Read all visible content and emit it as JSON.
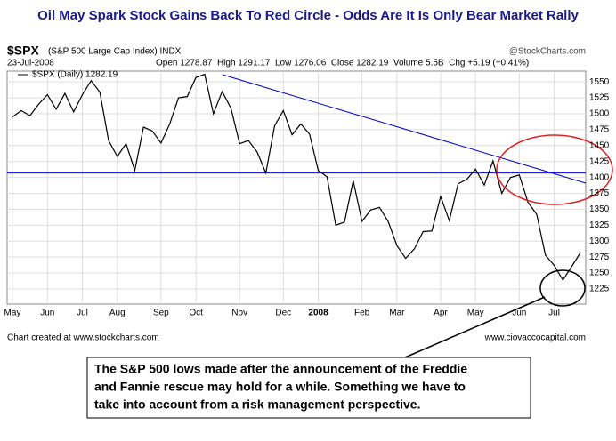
{
  "chart_data": {
    "type": "line",
    "title": "Oil May Spark Stock Gains Back To Red Circle - Odds Are It Is Only Bear Market Rally",
    "symbol": "$SPX",
    "symbol_description": "(S&P 500 Large Cap Index) INDX",
    "credit": "@StockCharts.com",
    "date": "23-Jul-2008",
    "quote": "Open 1278.87  High 1291.17  Low 1276.06  Close 1282.19  Volume 5.5B  Chg +5.19 (+0.41%)",
    "footer_left": "Chart created at www.stockcharts.com",
    "footer_right": "www.ciovaccocapital.com",
    "annotation": [
      "The S&P 500 lows made after the announcement of the Freddie",
      "and Fannie rescue may hold for a while. Something we have to",
      "take into account from a risk management perspective."
    ],
    "categories": [
      "May",
      null,
      null,
      null,
      "Jun",
      null,
      null,
      null,
      "Jul",
      null,
      null,
      null,
      "Aug",
      null,
      null,
      null,
      null,
      "Sep",
      null,
      null,
      null,
      "Oct",
      null,
      null,
      null,
      null,
      "Nov",
      null,
      null,
      null,
      null,
      "Dec",
      null,
      null,
      null,
      "2008",
      null,
      null,
      null,
      null,
      "Feb",
      null,
      null,
      null,
      "Mar",
      null,
      null,
      null,
      null,
      "Apr",
      null,
      null,
      null,
      "May",
      null,
      null,
      null,
      null,
      "Jun",
      null,
      null,
      null,
      "Jul",
      null,
      null,
      null
    ],
    "series": [
      {
        "name": "$SPX (Daily) 1282.19",
        "color": "#000000",
        "values": [
          1495,
          1505,
          1497,
          1515,
          1530,
          1507,
          1532,
          1503,
          1530,
          1552,
          1534,
          1458,
          1433,
          1453,
          1411,
          1479,
          1473,
          1454,
          1484,
          1525,
          1527,
          1557,
          1562,
          1500,
          1535,
          1509,
          1453,
          1458,
          1440,
          1407,
          1481,
          1505,
          1467,
          1484,
          1468,
          1411,
          1401,
          1325,
          1330,
          1395,
          1331,
          1349,
          1353,
          1331,
          1293,
          1273,
          1288,
          1315,
          1316,
          1370,
          1332,
          1390,
          1397,
          1413,
          1388,
          1426,
          1375,
          1400,
          1404,
          1361,
          1342,
          1278,
          1262,
          1239,
          1260,
          1282
        ]
      }
    ],
    "hline": {
      "value": 1407,
      "color": "#0000cc"
    },
    "ylim": [
      1204,
      1567
    ],
    "yticks": [
      1225,
      1250,
      1275,
      1300,
      1325,
      1350,
      1375,
      1400,
      1425,
      1450,
      1475,
      1500,
      1525,
      1550
    ],
    "grid": true
  }
}
